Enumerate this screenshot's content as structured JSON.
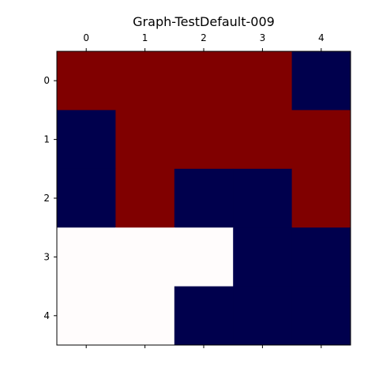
{
  "chart_data": {
    "type": "heatmap",
    "title": "Graph-TestDefault-009",
    "x_ticks": [
      "0",
      "1",
      "2",
      "3",
      "4"
    ],
    "y_ticks": [
      "0",
      "1",
      "2",
      "3",
      "4"
    ],
    "x_tick_position": "top",
    "grid": false,
    "colormap": "seismic",
    "colors": {
      "high": "#800000",
      "low": "#00004d",
      "mid": "#fffcfc"
    },
    "matrix": [
      [
        "high",
        "high",
        "high",
        "high",
        "low"
      ],
      [
        "low",
        "high",
        "high",
        "high",
        "high"
      ],
      [
        "low",
        "high",
        "low",
        "low",
        "high"
      ],
      [
        "mid",
        "mid",
        "mid",
        "low",
        "low"
      ],
      [
        "mid",
        "mid",
        "low",
        "low",
        "low"
      ]
    ]
  }
}
